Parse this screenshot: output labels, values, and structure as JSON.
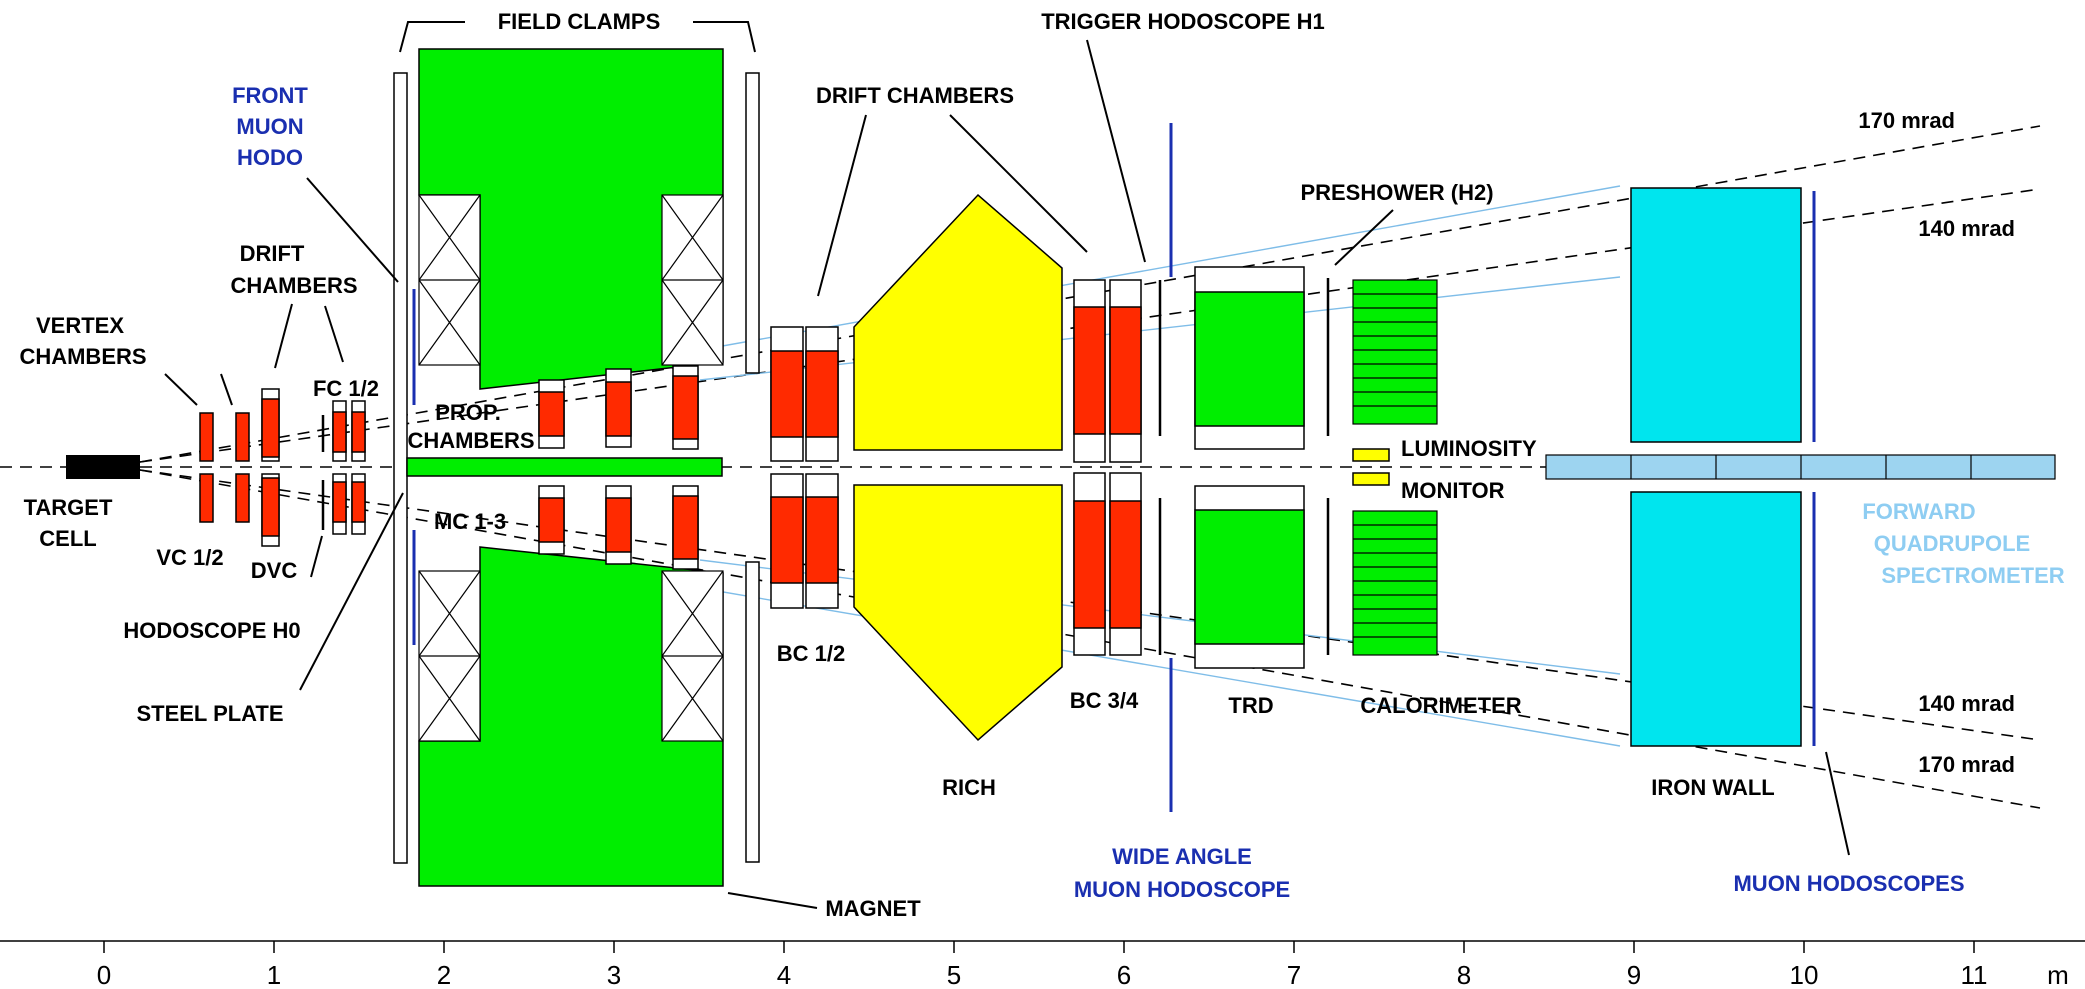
{
  "colors": {
    "magnet": "#00ee00",
    "chamber": "#ff2a00",
    "rich": "#ffff00",
    "iron": "#00e5ee",
    "muon_blue": "#1a2fb0",
    "fqs_light": "#8ecdf2",
    "quad": "#9dd4f0",
    "target": "#000000"
  },
  "labels": {
    "field_clamps": "FIELD CLAMPS",
    "trigger_h1": "TRIGGER HODOSCOPE H1",
    "front_muon_1": "FRONT",
    "front_muon_2": "MUON",
    "front_muon_3": "HODO",
    "drift_chambers_top": "DRIFT CHAMBERS",
    "preshower": "PRESHOWER (H2)",
    "drift_chambers_1": "DRIFT",
    "drift_chambers_2": "CHAMBERS",
    "vertex_1": "VERTEX",
    "vertex_2": "CHAMBERS",
    "fc12": "FC 1/2",
    "prop_1": "PROP.",
    "prop_2": "CHAMBERS",
    "luminosity": "LUMINOSITY",
    "monitor": "MONITOR",
    "target_1": "TARGET",
    "target_2": "CELL",
    "mc13": "MC 1-3",
    "vc12": "VC 1/2",
    "dvc": "DVC",
    "hodo_h0": "HODOSCOPE H0",
    "steel_plate": "STEEL PLATE",
    "bc12": "BC 1/2",
    "bc34": "BC 3/4",
    "trd": "TRD",
    "calorimeter": "CALORIMETER",
    "rich": "RICH",
    "iron_wall": "IRON WALL",
    "wide_angle_1": "WIDE ANGLE",
    "wide_angle_2": "MUON HODOSCOPE",
    "magnet": "MAGNET",
    "muon_hodoscopes": "MUON HODOSCOPES",
    "fqs_1": "FORWARD",
    "fqs_2": "QUADRUPOLE",
    "fqs_3": "SPECTROMETER",
    "mrad_170_top": "170 mrad",
    "mrad_140_top": "140 mrad",
    "mrad_140_bot": "140 mrad",
    "mrad_170_bot": "170 mrad"
  },
  "axis": {
    "ticks": [
      "0",
      "1",
      "2",
      "3",
      "4",
      "5",
      "6",
      "7",
      "8",
      "9",
      "10",
      "11"
    ],
    "unit": "m"
  }
}
